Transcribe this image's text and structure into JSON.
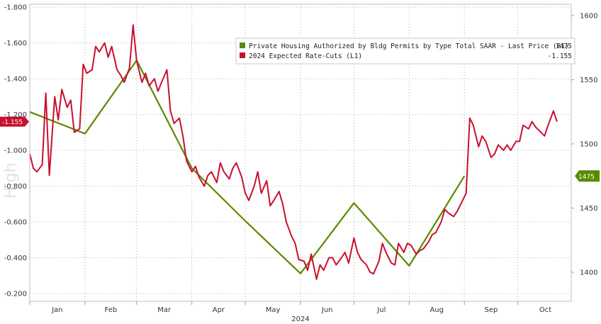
{
  "chart_data": {
    "type": "line",
    "x_year_label": "2024",
    "x_months": [
      "Jan",
      "Feb",
      "Mar",
      "Apr",
      "May",
      "Jun",
      "Jul",
      "Aug",
      "Sep",
      "Oct"
    ],
    "y_left": {
      "ticks": [
        "-1.800",
        "-1.600",
        "-1.400",
        "-1.200",
        "-1.000",
        "-0.800",
        "-0.600",
        "-0.400",
        "-0.200"
      ],
      "ylim": [
        -0.2,
        -1.8
      ],
      "current_tag": "-1.155"
    },
    "y_right": {
      "ticks": [
        "1600",
        "1550",
        "1500",
        "1450",
        "1400"
      ],
      "ylim": [
        1375,
        1612
      ],
      "current_tag": "1475"
    },
    "legend": {
      "entries": [
        {
          "label": "Private Housing Authorized by Bldg Permits by Type Total SAAR - Last Price (R1)",
          "value": "1475",
          "color": "#5a8a00"
        },
        {
          "label": "2024 Expected Rate-Cuts (L1)",
          "value": "-1.155",
          "color": "#c8102e"
        }
      ]
    },
    "watermark": "High",
    "series": [
      {
        "axis": "right",
        "color": "#5a8a00",
        "x": [
          "2024-01-01",
          "2024-02-01",
          "2024-03-01",
          "2024-04-01",
          "2024-05-01",
          "2024-06-01",
          "2024-07-01",
          "2024-08-01",
          "2024-09-01"
        ],
        "values": [
          1525,
          1508,
          1565,
          1481,
          1440,
          1399,
          1454,
          1405,
          1475
        ]
      },
      {
        "axis": "left",
        "color": "#c8102e",
        "x": [
          "2024-01-01",
          "2024-01-03",
          "2024-01-05",
          "2024-01-08",
          "2024-01-10",
          "2024-01-12",
          "2024-01-15",
          "2024-01-17",
          "2024-01-19",
          "2024-01-22",
          "2024-01-24",
          "2024-01-26",
          "2024-01-29",
          "2024-01-31",
          "2024-02-02",
          "2024-02-05",
          "2024-02-07",
          "2024-02-09",
          "2024-02-12",
          "2024-02-14",
          "2024-02-16",
          "2024-02-19",
          "2024-02-21",
          "2024-02-23",
          "2024-02-26",
          "2024-02-28",
          "2024-03-01",
          "2024-03-04",
          "2024-03-06",
          "2024-03-08",
          "2024-03-11",
          "2024-03-13",
          "2024-03-15",
          "2024-03-18",
          "2024-03-20",
          "2024-03-22",
          "2024-03-25",
          "2024-03-27",
          "2024-03-29",
          "2024-04-01",
          "2024-04-03",
          "2024-04-05",
          "2024-04-08",
          "2024-04-10",
          "2024-04-12",
          "2024-04-15",
          "2024-04-17",
          "2024-04-19",
          "2024-04-22",
          "2024-04-24",
          "2024-04-26",
          "2024-04-29",
          "2024-05-01",
          "2024-05-03",
          "2024-05-06",
          "2024-05-08",
          "2024-05-10",
          "2024-05-13",
          "2024-05-15",
          "2024-05-17",
          "2024-05-20",
          "2024-05-22",
          "2024-05-24",
          "2024-05-27",
          "2024-05-29",
          "2024-05-31",
          "2024-06-03",
          "2024-06-05",
          "2024-06-07",
          "2024-06-10",
          "2024-06-12",
          "2024-06-14",
          "2024-06-17",
          "2024-06-19",
          "2024-06-21",
          "2024-06-24",
          "2024-06-26",
          "2024-06-28",
          "2024-07-01",
          "2024-07-03",
          "2024-07-05",
          "2024-07-08",
          "2024-07-10",
          "2024-07-12",
          "2024-07-15",
          "2024-07-17",
          "2024-07-19",
          "2024-07-22",
          "2024-07-24",
          "2024-07-26",
          "2024-07-29",
          "2024-07-31",
          "2024-08-02",
          "2024-08-05",
          "2024-08-07",
          "2024-08-09",
          "2024-08-12",
          "2024-08-14",
          "2024-08-16",
          "2024-08-19",
          "2024-08-21",
          "2024-08-23",
          "2024-08-26",
          "2024-08-28",
          "2024-08-30",
          "2024-09-02",
          "2024-09-04",
          "2024-09-06",
          "2024-09-09",
          "2024-09-11",
          "2024-09-13",
          "2024-09-16",
          "2024-09-18",
          "2024-09-20",
          "2024-09-23",
          "2024-09-25",
          "2024-09-27",
          "2024-09-30",
          "2024-10-02",
          "2024-10-04",
          "2024-10-07",
          "2024-10-09",
          "2024-10-11",
          "2024-10-14",
          "2024-10-16",
          "2024-10-18",
          "2024-10-21",
          "2024-10-23"
        ],
        "values": [
          -0.98,
          -0.9,
          -0.88,
          -0.92,
          -1.32,
          -0.86,
          -1.3,
          -1.17,
          -1.34,
          -1.24,
          -1.28,
          -1.1,
          -1.12,
          -1.48,
          -1.43,
          -1.45,
          -1.58,
          -1.55,
          -1.6,
          -1.52,
          -1.58,
          -1.45,
          -1.42,
          -1.38,
          -1.46,
          -1.7,
          -1.5,
          -1.38,
          -1.43,
          -1.36,
          -1.4,
          -1.33,
          -1.38,
          -1.45,
          -1.22,
          -1.15,
          -1.18,
          -1.08,
          -0.94,
          -0.88,
          -0.91,
          -0.85,
          -0.8,
          -0.86,
          -0.88,
          -0.82,
          -0.93,
          -0.88,
          -0.84,
          -0.9,
          -0.93,
          -0.85,
          -0.76,
          -0.72,
          -0.8,
          -0.88,
          -0.76,
          -0.83,
          -0.69,
          -0.72,
          -0.77,
          -0.7,
          -0.6,
          -0.52,
          -0.48,
          -0.39,
          -0.38,
          -0.33,
          -0.42,
          -0.28,
          -0.36,
          -0.33,
          -0.4,
          -0.4,
          -0.36,
          -0.4,
          -0.43,
          -0.37,
          -0.51,
          -0.43,
          -0.39,
          -0.36,
          -0.32,
          -0.31,
          -0.38,
          -0.48,
          -0.43,
          -0.37,
          -0.36,
          -0.48,
          -0.43,
          -0.48,
          -0.47,
          -0.42,
          -0.44,
          -0.45,
          -0.49,
          -0.53,
          -0.54,
          -0.6,
          -0.67,
          -0.65,
          -0.63,
          -0.66,
          -0.7,
          -0.76,
          -1.18,
          -1.14,
          -1.02,
          -1.08,
          -1.05,
          -0.96,
          -0.98,
          -1.03,
          -1.0,
          -1.03,
          -1.0,
          -1.05,
          -1.05,
          -1.14,
          -1.12,
          -1.16,
          -1.13,
          -1.1,
          -1.08,
          -1.14,
          -1.22,
          -1.16
        ]
      }
    ]
  }
}
